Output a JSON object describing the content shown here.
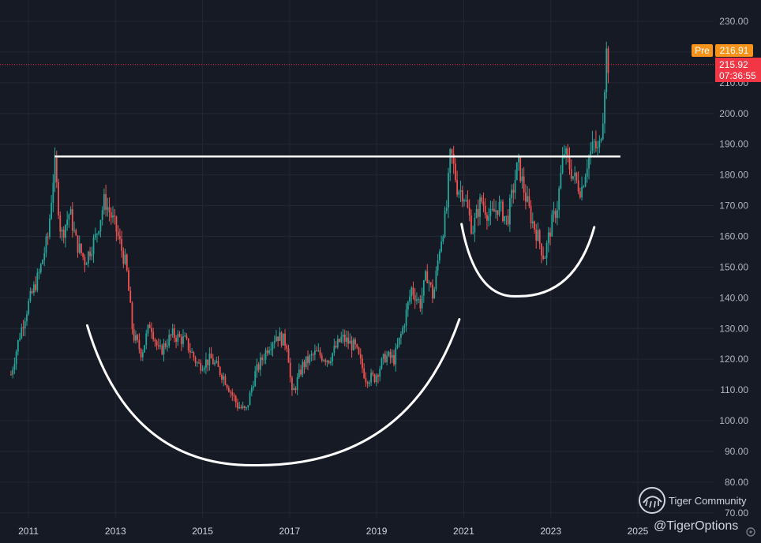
{
  "chart_data": {
    "type": "candlestick",
    "title": "",
    "xlabel": "",
    "ylabel": "",
    "ylim": [
      70,
      230
    ],
    "xlim": [
      2010.5,
      2025.5
    ],
    "y_ticks": [
      "230.00",
      "220.00",
      "210.00",
      "200.00",
      "190.00",
      "180.00",
      "170.00",
      "160.00",
      "150.00",
      "140.00",
      "130.00",
      "120.00",
      "110.00",
      "100.00",
      "90.00",
      "80.00",
      "70.00"
    ],
    "x_ticks": [
      "2011",
      "2013",
      "2015",
      "2017",
      "2019",
      "2021",
      "2023",
      "2025"
    ],
    "grid": true,
    "price_path": [
      {
        "t": 2010.6,
        "p": 115
      },
      {
        "t": 2010.8,
        "p": 128
      },
      {
        "t": 2011.0,
        "p": 138
      },
      {
        "t": 2011.25,
        "p": 148
      },
      {
        "t": 2011.45,
        "p": 160
      },
      {
        "t": 2011.6,
        "p": 184
      },
      {
        "t": 2011.75,
        "p": 160
      },
      {
        "t": 2011.95,
        "p": 168
      },
      {
        "t": 2012.1,
        "p": 158
      },
      {
        "t": 2012.3,
        "p": 152
      },
      {
        "t": 2012.55,
        "p": 160
      },
      {
        "t": 2012.75,
        "p": 172
      },
      {
        "t": 2013.0,
        "p": 163
      },
      {
        "t": 2013.25,
        "p": 150
      },
      {
        "t": 2013.4,
        "p": 128
      },
      {
        "t": 2013.6,
        "p": 122
      },
      {
        "t": 2013.8,
        "p": 132
      },
      {
        "t": 2014.0,
        "p": 122
      },
      {
        "t": 2014.3,
        "p": 128
      },
      {
        "t": 2014.6,
        "p": 126
      },
      {
        "t": 2014.9,
        "p": 118
      },
      {
        "t": 2015.2,
        "p": 120
      },
      {
        "t": 2015.5,
        "p": 114
      },
      {
        "t": 2015.8,
        "p": 105
      },
      {
        "t": 2016.0,
        "p": 103
      },
      {
        "t": 2016.2,
        "p": 115
      },
      {
        "t": 2016.5,
        "p": 124
      },
      {
        "t": 2016.7,
        "p": 128
      },
      {
        "t": 2016.95,
        "p": 125
      },
      {
        "t": 2017.05,
        "p": 108
      },
      {
        "t": 2017.3,
        "p": 118
      },
      {
        "t": 2017.6,
        "p": 122
      },
      {
        "t": 2017.9,
        "p": 120
      },
      {
        "t": 2018.2,
        "p": 127
      },
      {
        "t": 2018.5,
        "p": 124
      },
      {
        "t": 2018.75,
        "p": 114
      },
      {
        "t": 2018.95,
        "p": 114
      },
      {
        "t": 2019.2,
        "p": 121
      },
      {
        "t": 2019.4,
        "p": 120
      },
      {
        "t": 2019.6,
        "p": 130
      },
      {
        "t": 2019.8,
        "p": 143
      },
      {
        "t": 2020.0,
        "p": 138
      },
      {
        "t": 2020.15,
        "p": 148
      },
      {
        "t": 2020.3,
        "p": 140
      },
      {
        "t": 2020.45,
        "p": 157
      },
      {
        "t": 2020.6,
        "p": 168
      },
      {
        "t": 2020.7,
        "p": 188
      },
      {
        "t": 2020.85,
        "p": 176
      },
      {
        "t": 2021.0,
        "p": 174
      },
      {
        "t": 2021.2,
        "p": 162
      },
      {
        "t": 2021.4,
        "p": 172
      },
      {
        "t": 2021.6,
        "p": 166
      },
      {
        "t": 2021.8,
        "p": 170
      },
      {
        "t": 2022.0,
        "p": 165
      },
      {
        "t": 2022.25,
        "p": 184
      },
      {
        "t": 2022.4,
        "p": 174
      },
      {
        "t": 2022.55,
        "p": 166
      },
      {
        "t": 2022.7,
        "p": 160
      },
      {
        "t": 2022.85,
        "p": 153
      },
      {
        "t": 2023.0,
        "p": 163
      },
      {
        "t": 2023.15,
        "p": 170
      },
      {
        "t": 2023.3,
        "p": 188
      },
      {
        "t": 2023.5,
        "p": 180
      },
      {
        "t": 2023.7,
        "p": 175
      },
      {
        "t": 2023.85,
        "p": 185
      },
      {
        "t": 2024.0,
        "p": 190
      },
      {
        "t": 2024.1,
        "p": 187
      },
      {
        "t": 2024.2,
        "p": 200
      },
      {
        "t": 2024.28,
        "p": 220
      },
      {
        "t": 2024.32,
        "p": 216
      }
    ],
    "annotations": {
      "resistance_line": {
        "x1": 2011.6,
        "x2": 2024.6,
        "y": 186
      },
      "cup": {
        "x1": 2012.35,
        "y1": 131,
        "xmin": 2016.2,
        "ymin": 85.5,
        "x2": 2020.9,
        "y2": 133
      },
      "handle": {
        "x1": 2020.95,
        "y1": 164,
        "xmin": 2022.2,
        "ymin": 140.5,
        "x2": 2024.0,
        "y2": 163
      }
    },
    "pre_market": {
      "label": "Pre",
      "value": "216.91",
      "color": "#f7931a"
    },
    "last_price": {
      "value": "215.92",
      "countdown": "07:36:55",
      "color": "#f23645",
      "level": 215.92
    }
  },
  "colors": {
    "background": "#161a25",
    "up": "#26a69a",
    "down": "#ef5350",
    "grid": "#232734",
    "drawing": "#ffffff"
  },
  "watermark": {
    "brand": "Tiger Community",
    "handle": "@TigerOptions",
    "icon": "tiger-logo-icon"
  }
}
